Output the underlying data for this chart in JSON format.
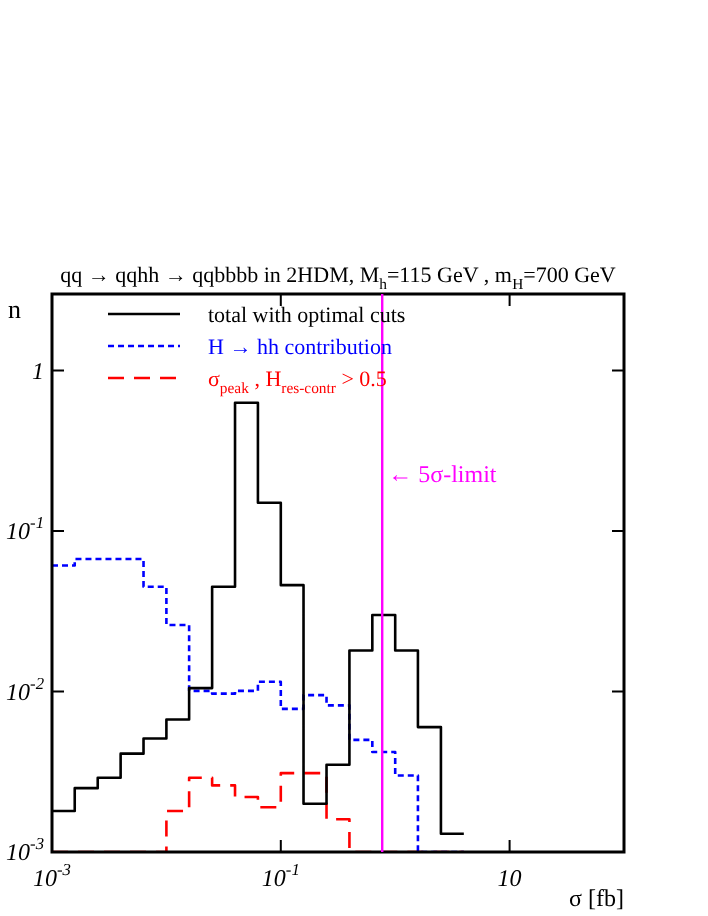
{
  "chart_data": {
    "type": "histogram",
    "title": "qq → qqhh → qqbbbb in 2HDM, M$_{h}$=115 GeV , m$_{H}$=700 GeV",
    "xlabel": "σ [fb]",
    "ylabel": "n",
    "bins": [
      0.001,
      0.00158,
      0.00251,
      0.00398,
      0.00631,
      0.01,
      0.0158,
      0.0251,
      0.0398,
      0.0631,
      0.1,
      0.158,
      0.251,
      0.398,
      0.631,
      1,
      1.58,
      2.51,
      3.98
    ],
    "series": [
      {
        "name": "total with optimal cuts",
        "color": "#000000",
        "line_style": "solid",
        "values": [
          0.0018,
          0.0025,
          0.0029,
          0.0041,
          0.0051,
          0.0067,
          0.0105,
          0.045,
          0.63,
          0.15,
          0.046,
          0.002,
          0.0035,
          0.018,
          0.03,
          0.018,
          0.006,
          0.0013
        ]
      },
      {
        "name": "H → hh contribution",
        "color": "#0000ff",
        "line_style": "dotted",
        "values": [
          0.061,
          0.067,
          0.067,
          0.067,
          0.045,
          0.026,
          0.0101,
          0.0097,
          0.0101,
          0.0115,
          0.0078,
          0.0095,
          0.0082,
          0.005,
          0.0042,
          0.003,
          null,
          null
        ]
      },
      {
        "name": "σ$_{peak}$ , H$_{res-contr}$ > 0.5",
        "color": "#ff0000",
        "line_style": "dashed",
        "values": [
          null,
          null,
          null,
          null,
          null,
          0.0018,
          0.0029,
          0.0026,
          0.0022,
          0.0019,
          0.0031,
          0.0031,
          0.0016,
          null,
          null,
          null,
          null,
          null
        ]
      }
    ],
    "log": "xy",
    "xlim": [
      0.001,
      100
    ],
    "ylim": [
      0.001,
      3
    ],
    "xticks": [
      {
        "value": 0.001,
        "label": "10$^{-3}$"
      },
      {
        "value": 0.1,
        "label": "10$^{-1}$"
      },
      10
    ],
    "yticks": [
      {
        "value": 0.001,
        "label": "10$^{-3}$"
      },
      {
        "value": 0.01,
        "label": "10$^{-2}$"
      },
      {
        "value": 0.1,
        "label": "10$^{-1}$"
      },
      1
    ],
    "ref_lines": [
      {
        "axis": "x",
        "value": 0.77,
        "label": "← 5σ-limit",
        "color": "#ff00ff",
        "line_style": "solid"
      }
    ],
    "legend": "top left",
    "grid": false
  }
}
